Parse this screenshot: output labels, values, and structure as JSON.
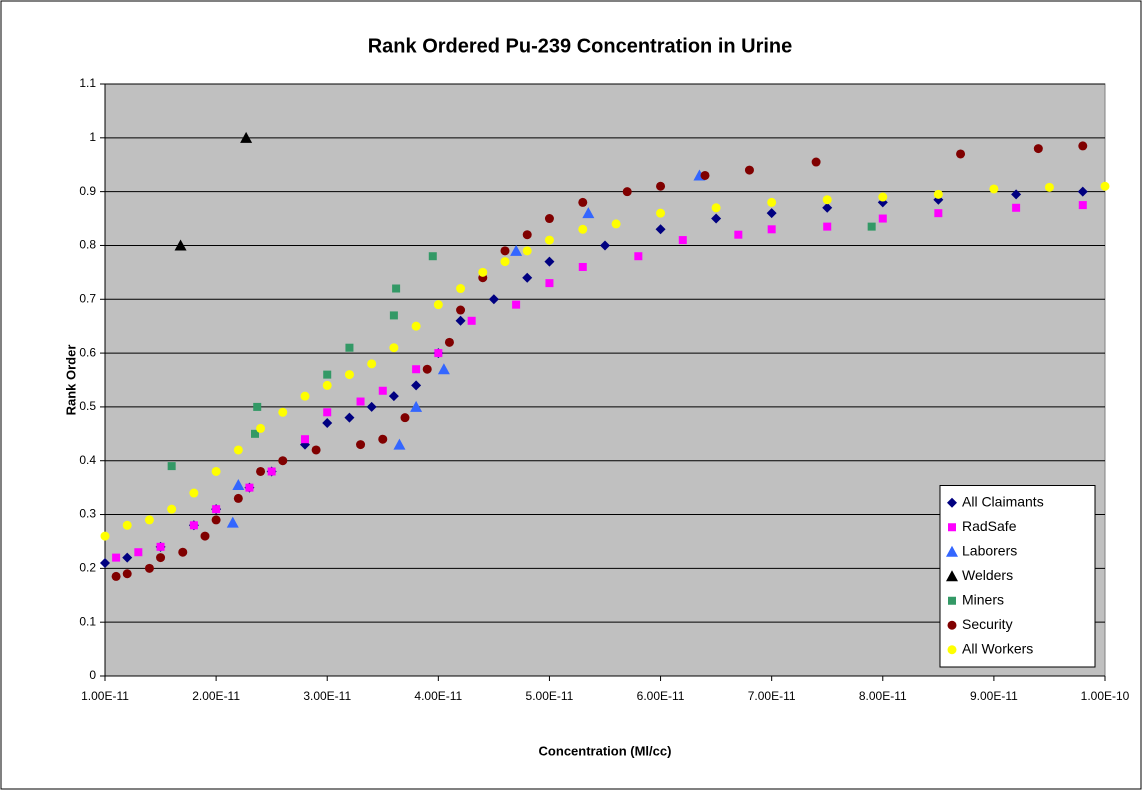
{
  "chart_data": {
    "type": "scatter",
    "title": "Rank Ordered Pu-239 Concentration in Urine",
    "x_label": "Concentration (Ml/cc)",
    "y_label": "Rank Order",
    "xlim": [
      1e-11,
      1e-10
    ],
    "xticks": [
      {
        "value": 1e-11,
        "label": "1.00E-11"
      },
      {
        "value": 2e-11,
        "label": "2.00E-11"
      },
      {
        "value": 3e-11,
        "label": "3.00E-11"
      },
      {
        "value": 4e-11,
        "label": "4.00E-11"
      },
      {
        "value": 5e-11,
        "label": "5.00E-11"
      },
      {
        "value": 6e-11,
        "label": "6.00E-11"
      },
      {
        "value": 7e-11,
        "label": "7.00E-11"
      },
      {
        "value": 8e-11,
        "label": "8.00E-11"
      },
      {
        "value": 9e-11,
        "label": "9.00E-11"
      },
      {
        "value": 1e-10,
        "label": "1.00E-10"
      }
    ],
    "ylim": [
      0,
      1.1
    ],
    "yticks": [
      0,
      0.1,
      0.2,
      0.3,
      0.4,
      0.5,
      0.6,
      0.7,
      0.8,
      0.9,
      1,
      1.1
    ],
    "grid": true,
    "legend": "lower right",
    "plot_background": "#c0c0c0",
    "series": [
      {
        "name": "All Claimants",
        "color": "#000080",
        "marker": "diamond",
        "x": [
          1e-11,
          1.2e-11,
          1.5e-11,
          1.8e-11,
          2e-11,
          2.3e-11,
          2.5e-11,
          2.8e-11,
          3e-11,
          3.2e-11,
          3.4e-11,
          3.6e-11,
          3.8e-11,
          4e-11,
          4.2e-11,
          4.5e-11,
          4.8e-11,
          5e-11,
          5.5e-11,
          6e-11,
          6.5e-11,
          7e-11,
          7.5e-11,
          8e-11,
          8.5e-11,
          9.2e-11,
          9.8e-11
        ],
        "values": [
          0.21,
          0.22,
          0.24,
          0.28,
          0.31,
          0.35,
          0.38,
          0.43,
          0.47,
          0.48,
          0.5,
          0.52,
          0.54,
          0.6,
          0.66,
          0.7,
          0.74,
          0.77,
          0.8,
          0.83,
          0.85,
          0.86,
          0.87,
          0.88,
          0.885,
          0.895,
          0.9
        ]
      },
      {
        "name": "RadSafe",
        "color": "#ff00ff",
        "marker": "square",
        "x": [
          1.1e-11,
          1.3e-11,
          1.5e-11,
          1.8e-11,
          2e-11,
          2.3e-11,
          2.5e-11,
          2.8e-11,
          3e-11,
          3.3e-11,
          3.5e-11,
          3.8e-11,
          4e-11,
          4.3e-11,
          4.7e-11,
          5e-11,
          5.3e-11,
          5.8e-11,
          6.2e-11,
          6.7e-11,
          7e-11,
          7.5e-11,
          8e-11,
          8.5e-11,
          9.2e-11,
          9.8e-11
        ],
        "values": [
          0.22,
          0.23,
          0.24,
          0.28,
          0.31,
          0.35,
          0.38,
          0.44,
          0.49,
          0.51,
          0.53,
          0.57,
          0.6,
          0.66,
          0.69,
          0.73,
          0.76,
          0.78,
          0.81,
          0.82,
          0.83,
          0.835,
          0.85,
          0.86,
          0.87,
          0.875
        ]
      },
      {
        "name": "Laborers",
        "color": "#3366ff",
        "marker": "triangle",
        "x": [
          2.15e-11,
          2.2e-11,
          3.65e-11,
          3.8e-11,
          4.05e-11,
          4.7e-11,
          5.35e-11,
          6.35e-11
        ],
        "values": [
          0.285,
          0.355,
          0.43,
          0.5,
          0.57,
          0.79,
          0.86,
          0.93
        ]
      },
      {
        "name": "Welders",
        "color": "#000000",
        "marker": "triangle",
        "x": [
          1.68e-11,
          2.27e-11
        ],
        "values": [
          0.8,
          1
        ]
      },
      {
        "name": "Miners",
        "color": "#339966",
        "marker": "square",
        "x": [
          1.6e-11,
          2.35e-11,
          2.37e-11,
          3e-11,
          3.2e-11,
          3.6e-11,
          3.62e-11,
          3.95e-11,
          7.9e-11
        ],
        "values": [
          0.39,
          0.45,
          0.5,
          0.56,
          0.61,
          0.67,
          0.72,
          0.78,
          0.835
        ]
      },
      {
        "name": "Security",
        "color": "#800000",
        "marker": "circle",
        "x": [
          1.1e-11,
          1.2e-11,
          1.4e-11,
          1.5e-11,
          1.7e-11,
          1.9e-11,
          2e-11,
          2.2e-11,
          2.4e-11,
          2.6e-11,
          2.9e-11,
          3.3e-11,
          3.5e-11,
          3.7e-11,
          3.9e-11,
          4.1e-11,
          4.2e-11,
          4.4e-11,
          4.6e-11,
          4.8e-11,
          5e-11,
          5.3e-11,
          5.7e-11,
          6e-11,
          6.4e-11,
          6.8e-11,
          7.4e-11,
          8.7e-11,
          9.4e-11,
          9.8e-11
        ],
        "values": [
          0.185,
          0.19,
          0.2,
          0.22,
          0.23,
          0.26,
          0.29,
          0.33,
          0.38,
          0.4,
          0.42,
          0.43,
          0.44,
          0.48,
          0.57,
          0.62,
          0.68,
          0.74,
          0.79,
          0.82,
          0.85,
          0.88,
          0.9,
          0.91,
          0.93,
          0.94,
          0.955,
          0.97,
          0.98,
          0.985
        ]
      },
      {
        "name": "All Workers",
        "color": "#ffff00",
        "marker": "circle",
        "x": [
          1e-11,
          1.2e-11,
          1.4e-11,
          1.6e-11,
          1.8e-11,
          2e-11,
          2.2e-11,
          2.4e-11,
          2.6e-11,
          2.8e-11,
          3e-11,
          3.2e-11,
          3.4e-11,
          3.6e-11,
          3.8e-11,
          4e-11,
          4.2e-11,
          4.4e-11,
          4.6e-11,
          4.8e-11,
          5e-11,
          5.3e-11,
          5.6e-11,
          6e-11,
          6.5e-11,
          7e-11,
          7.5e-11,
          8e-11,
          8.5e-11,
          9e-11,
          9.5e-11,
          1e-10
        ],
        "values": [
          0.26,
          0.28,
          0.29,
          0.31,
          0.34,
          0.38,
          0.42,
          0.46,
          0.49,
          0.52,
          0.54,
          0.56,
          0.58,
          0.61,
          0.65,
          0.69,
          0.72,
          0.75,
          0.77,
          0.79,
          0.81,
          0.83,
          0.84,
          0.86,
          0.87,
          0.88,
          0.885,
          0.89,
          0.895,
          0.905,
          0.908,
          0.91
        ]
      }
    ]
  }
}
